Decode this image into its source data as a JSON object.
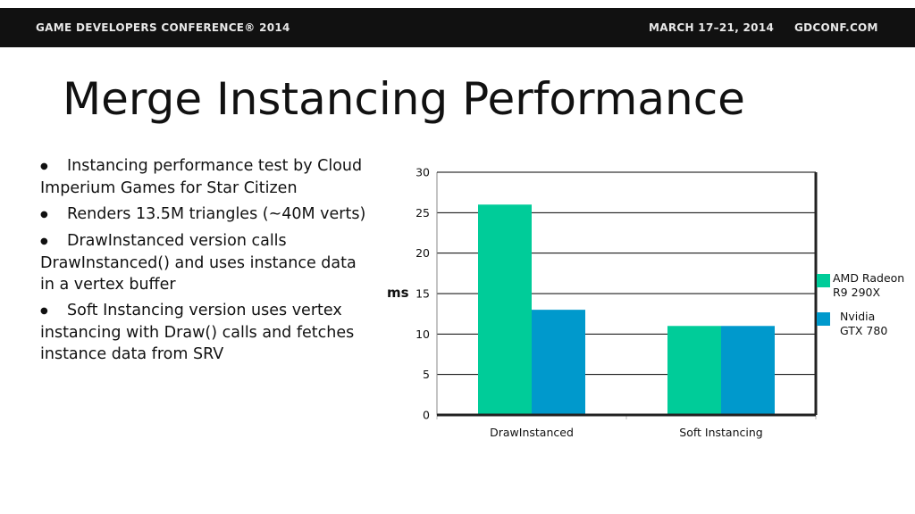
{
  "header": {
    "conference": "GAME DEVELOPERS CONFERENCE® 2014",
    "dates": "MARCH 17–21, 2014",
    "website": "GDCONF.COM"
  },
  "slide": {
    "title": "Merge Instancing Performance",
    "bullets": [
      "Instancing performance test by Cloud Imperium Games for Star Citizen",
      "Renders 13.5M triangles (~40M verts)",
      "DrawInstanced version calls DrawInstanced() and uses instance data in a vertex buffer",
      "Soft Instancing version uses vertex instancing with Draw() calls and fetches instance data from SRV"
    ],
    "bullet_symbol": "●"
  },
  "chart_data": {
    "type": "bar",
    "categories": [
      "DrawInstanced",
      "Soft Instancing"
    ],
    "series": [
      {
        "name": "AMD Radeon\nR9 290X",
        "values": [
          26,
          11
        ],
        "color": "#00cc99"
      },
      {
        "name": "Nvidia\nGTX 780",
        "values": [
          13,
          11
        ],
        "color": "#0099cc"
      }
    ],
    "title": "",
    "xlabel": "",
    "ylabel": "ms",
    "ylim": [
      0,
      30
    ],
    "yticks": [
      0,
      5,
      10,
      15,
      20,
      25,
      30
    ],
    "grid": true,
    "legend_position": "right"
  }
}
